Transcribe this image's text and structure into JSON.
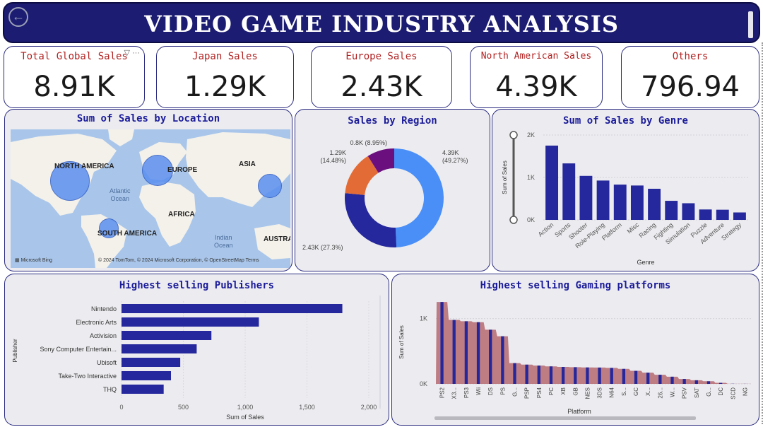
{
  "header": {
    "title": "VIDEO GAME INDUSTRY ANALYSIS",
    "back_icon": "back-arrow-icon"
  },
  "kpis": [
    {
      "label": "Total Global Sales",
      "value": "8.91K"
    },
    {
      "label": "Japan Sales",
      "value": "1.29K"
    },
    {
      "label": "Europe Sales",
      "value": "2.43K"
    },
    {
      "label": "North American Sales",
      "value": "4.39K"
    },
    {
      "label": "Others",
      "value": "796.94"
    }
  ],
  "kpi_tools": {
    "filter_icon": "filter-icon",
    "more_icon": "more-options-icon",
    "more_text": "···"
  },
  "map_panel": {
    "title": "Sum of Sales by Location",
    "labels": {
      "na": "NORTH AMERICA",
      "eu": "EUROPE",
      "asia": "ASIA",
      "africa": "AFRICA",
      "sa": "SOUTH AMERICA",
      "aus": "AUSTRAL"
    },
    "oceans": {
      "atlantic": "Atlantic\nOcean",
      "indian": "Indian\nOcean"
    },
    "credit": "© 2024 TomTom, © 2024 Microsoft Corporation, © OpenStreetMap  Terms",
    "bing": "Microsoft Bing",
    "bubble_color": "#5b8ff0"
  },
  "region_panel": {
    "title": "Sales by Region"
  },
  "genre_panel": {
    "title": "Sum of Sales by Genre"
  },
  "publisher_panel": {
    "title": "Highest selling Publishers"
  },
  "platform_panel": {
    "title": "Highest selling Gaming platforms"
  },
  "chart_data": [
    {
      "type": "pie",
      "title": "Sales by Region",
      "slices": [
        {
          "label": "4.39K",
          "pct": "(49.27%)",
          "value": 4390,
          "color": "#4a8ff7"
        },
        {
          "label": "2.43K",
          "pct": "(27.3%)",
          "value": 2430,
          "color": "#25279c"
        },
        {
          "label": "1.29K",
          "pct": "(14.48%)",
          "value": 1290,
          "color": "#e36c36"
        },
        {
          "label": "0.8K",
          "pct": "(8.95%)",
          "value": 797,
          "color": "#6b0f7f"
        }
      ]
    },
    {
      "type": "bar",
      "title": "Sum of Sales by Genre",
      "xlabel": "Genre",
      "ylabel": "Sum of Sales",
      "ylim": [
        0,
        2000
      ],
      "yticks": [
        "0K",
        "1K",
        "2K"
      ],
      "categories": [
        "Action",
        "Sports",
        "Shooter",
        "Role-Playing",
        "Platform",
        "Misc",
        "Racing",
        "Fighting",
        "Simulation",
        "Puzzle",
        "Adventure",
        "Strategy"
      ],
      "values": [
        1751,
        1331,
        1037,
        927,
        831,
        810,
        733,
        449,
        392,
        245,
        239,
        175
      ],
      "color": "#25279c"
    },
    {
      "type": "bar",
      "orientation": "horizontal",
      "title": "Highest selling Publishers",
      "xlabel": "Sum of Sales",
      "ylabel": "Publisher",
      "xlim": [
        0,
        2000
      ],
      "xticks": [
        "0",
        "500",
        "1,000",
        "1,500",
        "2,000"
      ],
      "categories": [
        "Nintendo",
        "Electronic Arts",
        "Activision",
        "Sony Computer Entertain...",
        "Ubisoft",
        "Take-Two Interactive",
        "THQ"
      ],
      "values": [
        1786,
        1111,
        727,
        608,
        475,
        400,
        341
      ],
      "color": "#25279c"
    },
    {
      "type": "bar",
      "title": "Highest selling Gaming platforms",
      "xlabel": "Platform",
      "ylabel": "Sum of Sales",
      "ylim": [
        0,
        1300
      ],
      "yticks": [
        "0K",
        "1K"
      ],
      "categories": [
        "PS2",
        "X3...",
        "PS3",
        "Wii",
        "DS",
        "PS",
        "G...",
        "PSP",
        "PS4",
        "PC",
        "XB",
        "GB",
        "NES",
        "3DS",
        "N64",
        "S...",
        "GC",
        "X...",
        "26...",
        "W...",
        "PSV",
        "SAT",
        "G...",
        "DC",
        "SCD",
        "NG"
      ],
      "values": [
        1255,
        980,
        960,
        945,
        830,
        730,
        318,
        295,
        280,
        268,
        260,
        256,
        252,
        250,
        245,
        230,
        200,
        172,
        140,
        110,
        75,
        55,
        40,
        16,
        2,
        1
      ],
      "bar_color": "#25279c",
      "area_color": "#b56a70"
    }
  ]
}
